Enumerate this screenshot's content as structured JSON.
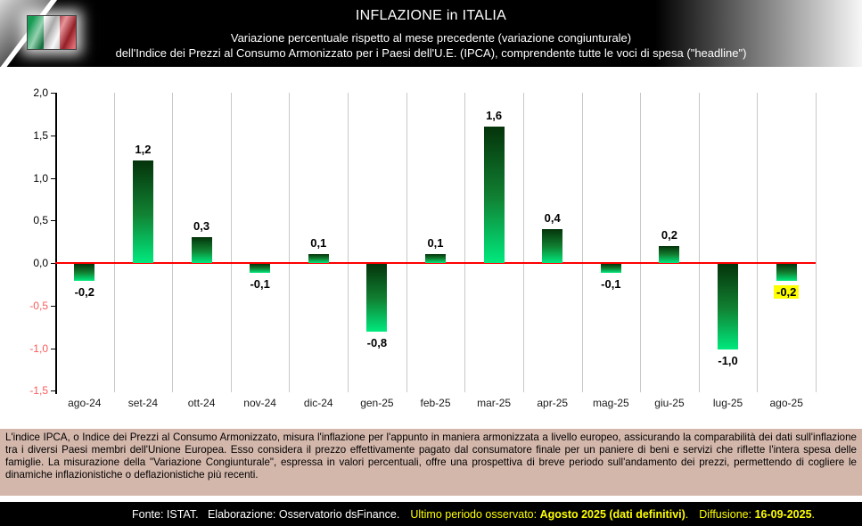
{
  "header": {
    "title": "INFLAZIONE in ITALIA",
    "subtitle1": "Variazione percentuale rispetto al mese precedente (variazione congiunturale)",
    "subtitle2": "dell'Indice dei Prezzi al Consumo Armonizzato per i Paesi dell'U.E. (IPCA), comprendente tutte le voci di spesa (\"headline\")",
    "flag_icon": "italy-flag-icon"
  },
  "chart_data": {
    "type": "bar",
    "title": "INFLAZIONE in ITALIA - variazione congiunturale IPCA",
    "categories": [
      "ago-24",
      "set-24",
      "ott-24",
      "nov-24",
      "dic-24",
      "gen-25",
      "feb-25",
      "mar-25",
      "apr-25",
      "mag-25",
      "giu-25",
      "lug-25",
      "ago-25"
    ],
    "values": [
      -0.2,
      1.2,
      0.3,
      -0.1,
      0.1,
      -0.8,
      0.1,
      1.6,
      0.4,
      -0.1,
      0.2,
      -1.0,
      -0.2
    ],
    "value_labels": [
      "-0,2",
      "1,2",
      "0,3",
      "-0,1",
      "0,1",
      "-0,8",
      "0,1",
      "1,6",
      "0,4",
      "-0,1",
      "0,2",
      "-1,0",
      "-0,2"
    ],
    "highlighted_index": 12,
    "highlight_bg": "#ffff00",
    "xlabel": "",
    "ylabel": "",
    "ylim": [
      -1.5,
      2.0
    ],
    "y_ticks": [
      2.0,
      1.5,
      1.0,
      0.5,
      0.0,
      -0.5,
      -1.0,
      -1.5
    ],
    "y_tick_labels": [
      "2,0",
      "1,5",
      "1,0",
      "0,5",
      "0,0",
      "-0,5",
      "-1,0",
      "-1,5"
    ],
    "negative_tick_color": "#fb5a5a",
    "grid": "vertical-only",
    "gridline_color": "#c8c8c8",
    "zero_line_color": "#ff0000",
    "bar_color_top": "#04330a",
    "bar_color_bottom": "#00e97e",
    "legend": "none"
  },
  "description": {
    "text": "L'indice IPCA, o Indice dei Prezzi al Consumo Armonizzato, misura l'inflazione per l'appunto in maniera armonizzata a livello europeo, assicurando la comparabilità dei dati sull'inflazione tra i diversi Paesi membri dell'Unione Europea. Esso considera il prezzo effettivamente pagato dal consumatore finale per un paniere di beni e servizi che riflette l'intera spesa delle famiglie. La misurazione della \"Variazione Congiunturale\", espressa in valori percentuali, offre una prospettiva di breve periodo sull'andamento dei prezzi, permettendo di cogliere le dinamiche inflazionistiche o deflazionistiche più recenti."
  },
  "footer": {
    "fonte": "Fonte: ISTAT.   Elaborazione: Osservatorio dsFinance.",
    "ultimo_label": "Ultimo periodo osservato: ",
    "ultimo_value": "Agosto 2025 (dati definitivi)",
    "sep1": ".",
    "diffusione_label": "Diffusione: ",
    "diffusione_value": "16-09-2025",
    "sep2": ".",
    "accent_color": "#ffff00"
  }
}
